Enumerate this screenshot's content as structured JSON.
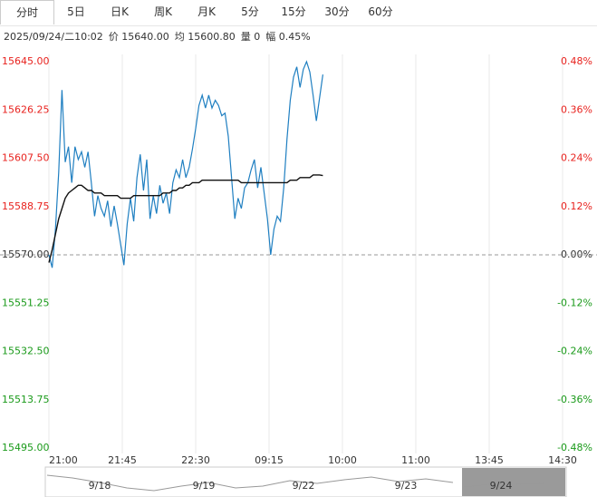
{
  "tabs": [
    "分时",
    "5日",
    "日K",
    "周K",
    "月K",
    "5分",
    "15分",
    "30分",
    "60分"
  ],
  "info": [
    "2025/09/24/二10:02",
    "价 15640.00",
    "均 15600.80",
    "量 0",
    "幅 0.45%"
  ],
  "chart_data": {
    "type": "line",
    "x": [
      0,
      2,
      4,
      6,
      8,
      10,
      12,
      14,
      16,
      18,
      20,
      22,
      24,
      26,
      28,
      30,
      32,
      34,
      36,
      38,
      40,
      42,
      44,
      46,
      48,
      50,
      52,
      54,
      56,
      58,
      60,
      62,
      64,
      66,
      68,
      70,
      72,
      74,
      76,
      78,
      80,
      82,
      84,
      86,
      88,
      90,
      92,
      94,
      96,
      98,
      100,
      102,
      104,
      106,
      108,
      110,
      112,
      114,
      116,
      118,
      120,
      122,
      124,
      126,
      128,
      130,
      132,
      134,
      136,
      138,
      140,
      142,
      144,
      146,
      148,
      150,
      152,
      154,
      156,
      158,
      160,
      162,
      164,
      166,
      168
    ],
    "series": [
      {
        "color": "#1f7fc1",
        "values": [
          15570,
          15565,
          15580,
          15602,
          15634,
          15606,
          15612,
          15598,
          15612,
          15607,
          15610,
          15604,
          15610,
          15598,
          15585,
          15593,
          15588,
          15585,
          15591,
          15581,
          15589,
          15582,
          15574,
          15566,
          15582,
          15592,
          15583,
          15600,
          15609,
          15595,
          15607,
          15584,
          15593,
          15586,
          15597,
          15590,
          15594,
          15586,
          15598,
          15603,
          15600,
          15607,
          15600,
          15604,
          15611,
          15619,
          15628,
          15632,
          15627,
          15632,
          15627,
          15630,
          15628,
          15624,
          15625,
          15616,
          15600,
          15584,
          15592,
          15588,
          15596,
          15598,
          15603,
          15607,
          15596,
          15604,
          15594,
          15584,
          15570,
          15580,
          15585,
          15583,
          15596,
          15615,
          15630,
          15639,
          15643,
          15635,
          15642,
          15645,
          15641,
          15632,
          15622,
          15631,
          15640
        ]
      },
      {
        "color": "#111111",
        "values": [
          15567,
          15572,
          15578,
          15584,
          15588,
          15592,
          15594,
          15595,
          15596,
          15597,
          15597,
          15596,
          15595,
          15595,
          15594,
          15594,
          15594,
          15593,
          15593,
          15593,
          15593,
          15593,
          15592,
          15592,
          15592,
          15592,
          15593,
          15593,
          15593,
          15593,
          15593,
          15593,
          15593,
          15593,
          15593,
          15594,
          15594,
          15594,
          15595,
          15595,
          15596,
          15596,
          15597,
          15597,
          15598,
          15598,
          15598,
          15599,
          15599,
          15599,
          15599,
          15599,
          15599,
          15599,
          15599,
          15599,
          15599,
          15599,
          15599,
          15598,
          15598,
          15598,
          15598,
          15598,
          15598,
          15598,
          15598,
          15598,
          15598,
          15598,
          15598,
          15598,
          15598,
          15598,
          15599,
          15599,
          15599,
          15600,
          15600,
          15600,
          15600,
          15601,
          15601,
          15601,
          15600.8
        ]
      }
    ],
    "xlim": [
      0,
      345
    ],
    "xticks": [
      {
        "value": 0,
        "label": "21:00"
      },
      {
        "value": 45,
        "label": "21:45"
      },
      {
        "value": 90,
        "label": "22:30"
      },
      {
        "value": 135,
        "label": "09:15"
      },
      {
        "value": 180,
        "label": "10:00"
      },
      {
        "value": 225,
        "label": "11:00"
      },
      {
        "value": 270,
        "label": "13:45"
      },
      {
        "value": 315,
        "label": "14:30"
      }
    ],
    "ylim": [
      15495,
      15645
    ],
    "yticks": [
      {
        "value": 15645,
        "label": "15645.00"
      },
      {
        "value": 15626.25,
        "label": "15626.25"
      },
      {
        "value": 15607.5,
        "label": "15607.50"
      },
      {
        "value": 15588.75,
        "label": "15588.75"
      },
      {
        "value": 15570,
        "label": "15570.00"
      },
      {
        "value": 15551.25,
        "label": "15551.25"
      },
      {
        "value": 15532.5,
        "label": "15532.50"
      },
      {
        "value": 15513.75,
        "label": "15513.75"
      },
      {
        "value": 15495,
        "label": "15495.00"
      }
    ],
    "y2lim": [
      -0.48,
      0.48
    ],
    "y2ticks": [
      {
        "value": 0.48,
        "label": "0.48%"
      },
      {
        "value": 0.36,
        "label": "0.36%"
      },
      {
        "value": 0.24,
        "label": "0.24%"
      },
      {
        "value": 0.12,
        "label": "0.12%"
      },
      {
        "value": 0,
        "label": "0.00%"
      },
      {
        "value": -0.12,
        "label": "-0.12%"
      },
      {
        "value": -0.24,
        "label": "-0.24%"
      },
      {
        "value": -0.36,
        "label": "-0.36%"
      },
      {
        "value": -0.48,
        "label": "-0.48%"
      }
    ],
    "up_color": "#e8221e",
    "down_color": "#1a9a1a",
    "flat_color": "#333333",
    "navigator": [
      "9/18",
      "9/19",
      "9/22",
      "9/23",
      "9/24"
    ]
  }
}
